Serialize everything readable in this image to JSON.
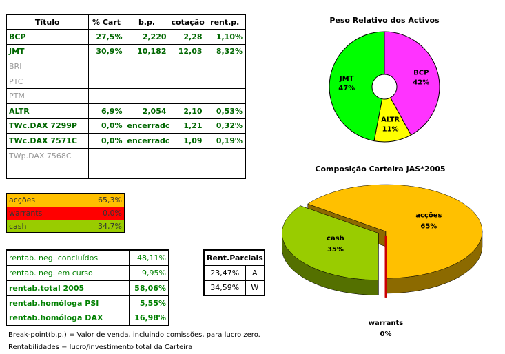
{
  "main_table": {
    "header": [
      "Título",
      "% Cart",
      "b.p.",
      "cotação",
      "rent.p."
    ],
    "rows": [
      {
        "cells": [
          "BCP",
          "27,5%",
          "2,220",
          "2,28",
          "1,10%"
        ]
      },
      {
        "cells": [
          "JMT",
          "30,9%",
          "10,182",
          "12,03",
          "8,32%"
        ]
      },
      {
        "cells": [
          "BRI"
        ],
        "inactive": true
      },
      {
        "cells": [
          "PTC"
        ],
        "inactive": true
      },
      {
        "cells": [
          "PTM"
        ],
        "inactive": true
      },
      {
        "cells": [
          "ALTR",
          "6,9%",
          "2,054",
          "2,10",
          "0,53%"
        ]
      },
      {
        "cells": [
          "TWc.DAX 7299P",
          "0,0%",
          "encerrado",
          "1,21",
          "0,32%"
        ]
      },
      {
        "cells": [
          "TWc.DAX 7571C",
          "0,0%",
          "encerrado",
          "1,09",
          "0,19%"
        ]
      },
      {
        "cells": [
          "TWp.DAX 7568C"
        ],
        "inactive": true
      }
    ]
  },
  "allocation_table": {
    "rows": [
      {
        "cells": [
          "acções",
          "65,3%"
        ],
        "color": "#ffc000"
      },
      {
        "cells": [
          "warrants",
          "0,0%"
        ],
        "color": "#ff0000"
      },
      {
        "cells": [
          "cash",
          "34,7%"
        ],
        "color": "#99cc00"
      }
    ]
  },
  "returns_table": {
    "rows": [
      {
        "cells": [
          "rentab. neg. concluídos",
          "48,11%"
        ]
      },
      {
        "cells": [
          "rentab. neg. em curso",
          "9,95%"
        ]
      },
      {
        "cells": [
          "rentab.total 2005",
          "58,06%"
        ],
        "bold": true
      },
      {
        "cells": [
          "rentab.homóloga PSI",
          "5,55%"
        ],
        "bold": true
      },
      {
        "cells": [
          "rentab.homóloga DAX",
          "16,98%"
        ],
        "bold": true
      }
    ]
  },
  "partial_returns_table": {
    "header": "Rent.Parciais",
    "rows": [
      [
        "23,47%",
        "A"
      ],
      [
        "34,59%",
        "W"
      ]
    ]
  },
  "notes": [
    "Break-point(b.p.) = Valor de venda, incluindo comissões, para lucro zero.",
    "Rentabilidades = lucro/investimento total da Carteira"
  ],
  "chart_data": [
    {
      "type": "doughnut",
      "title": "Peso Relativo dos Activos",
      "categories": [
        "BCP",
        "ALTR",
        "JMT"
      ],
      "values": [
        42,
        11,
        47
      ],
      "value_labels": [
        "42%",
        "11%",
        "47%"
      ],
      "colors": [
        "#ff33ff",
        "#ffff00",
        "#00ff00"
      ]
    },
    {
      "type": "pie3d",
      "title": "Composição Carteira JAS*2005",
      "categories": [
        "acções",
        "warrants",
        "cash"
      ],
      "values": [
        65,
        0,
        35
      ],
      "value_labels": [
        "65%",
        "0%",
        "35%"
      ],
      "colors": [
        "#ffc000",
        "#cc0000",
        "#99cc00"
      ]
    }
  ]
}
